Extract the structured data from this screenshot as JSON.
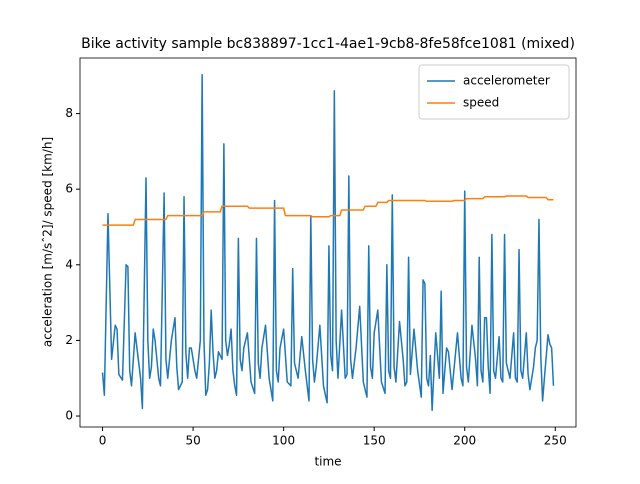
{
  "chart_data": {
    "type": "line",
    "title": "Bike activity sample bc838897-1cc1-4ae1-9cb8-8fe58fce1081 (mixed)",
    "x_label": "time",
    "y_label": "acceleration [m/sˆ2]/ speed [km/h]",
    "xlim": [
      -12.45,
      261.45
    ],
    "xticks": [
      0,
      50,
      100,
      150,
      200,
      250
    ],
    "ylim": [
      -0.29,
      9.47
    ],
    "yticks": [
      0,
      2,
      4,
      6,
      8
    ],
    "legend": "upper right",
    "series": [
      {
        "name": "accelerometer",
        "color": "#1f77b4",
        "x": [
          0,
          1,
          3,
          5,
          7,
          8,
          9,
          11,
          13,
          14,
          15,
          16,
          18,
          19,
          21,
          22,
          24,
          25,
          26,
          27,
          28,
          29,
          31,
          32,
          34,
          35,
          36,
          38,
          40,
          41,
          42,
          44,
          45,
          46,
          47,
          48,
          49,
          51,
          52,
          54,
          55,
          56,
          57,
          58,
          59,
          60,
          61,
          62,
          63,
          64,
          66,
          67,
          68,
          69,
          70,
          71,
          72,
          73,
          74,
          75,
          76,
          77,
          78,
          80,
          82,
          84,
          85,
          86,
          87,
          88,
          90,
          92,
          94,
          95,
          96,
          97,
          98,
          100,
          102,
          104,
          105,
          106,
          108,
          110,
          112,
          114,
          115,
          116,
          117,
          118,
          120,
          122,
          124,
          125,
          126,
          127,
          128,
          129,
          130,
          132,
          134,
          135,
          136,
          137,
          138,
          140,
          142,
          144,
          146,
          147,
          148,
          149,
          150,
          152,
          154,
          156,
          157,
          158,
          159,
          160,
          161,
          162,
          164,
          166,
          167,
          168,
          169,
          170,
          172,
          174,
          176,
          177,
          178,
          179,
          180,
          181,
          182,
          183,
          184,
          186,
          187,
          188,
          190,
          191,
          192,
          193,
          194,
          196,
          198,
          199,
          200,
          201,
          202,
          204,
          206,
          207,
          208,
          209,
          210,
          211,
          212,
          213,
          214,
          215,
          216,
          217,
          219,
          220,
          221,
          222,
          223,
          224,
          225,
          227,
          228,
          229,
          230,
          231,
          232,
          234,
          235,
          236,
          238,
          239,
          240,
          241,
          242,
          243,
          244,
          246,
          247,
          248,
          249
        ],
        "values": [
          1.15,
          0.55,
          5.35,
          1.5,
          2.4,
          2.3,
          1.1,
          0.95,
          4.0,
          3.95,
          1.2,
          0.8,
          2.2,
          1.8,
          1.0,
          0.2,
          6.3,
          2.0,
          1.0,
          1.3,
          2.3,
          2.0,
          1.0,
          0.8,
          5.9,
          1.5,
          1.0,
          2.0,
          2.6,
          1.3,
          0.7,
          0.9,
          5.8,
          1.7,
          1.0,
          1.8,
          1.8,
          1.2,
          1.0,
          2.0,
          9.03,
          2.0,
          0.55,
          0.7,
          1.4,
          2.8,
          1.7,
          1.0,
          1.2,
          1.7,
          1.5,
          7.2,
          2.0,
          1.6,
          1.9,
          2.3,
          1.2,
          0.8,
          0.55,
          4.7,
          1.5,
          1.2,
          1.8,
          2.2,
          0.9,
          0.6,
          4.7,
          1.4,
          1.0,
          1.8,
          2.4,
          1.0,
          0.4,
          5.7,
          1.2,
          0.9,
          1.8,
          2.3,
          0.9,
          0.8,
          3.9,
          1.4,
          1.0,
          2.1,
          1.2,
          0.4,
          5.3,
          1.5,
          0.9,
          1.3,
          2.4,
          0.8,
          0.35,
          4.5,
          1.6,
          1.2,
          8.6,
          2.0,
          1.0,
          2.8,
          1.0,
          1.1,
          6.35,
          1.5,
          1.0,
          1.8,
          2.9,
          0.9,
          0.5,
          4.5,
          1.3,
          1.0,
          2.2,
          2.8,
          0.9,
          0.6,
          4.0,
          1.2,
          1.0,
          5.85,
          1.3,
          0.9,
          2.5,
          1.5,
          0.8,
          0.9,
          4.2,
          1.1,
          2.3,
          1.2,
          0.5,
          3.6,
          3.5,
          1.0,
          0.8,
          1.6,
          0.15,
          1.2,
          2.2,
          1.0,
          3.3,
          0.6,
          1.8,
          1.7,
          1.2,
          0.7,
          1.2,
          2.2,
          1.0,
          0.8,
          5.95,
          1.3,
          0.9,
          2.4,
          1.5,
          0.8,
          4.2,
          1.2,
          0.9,
          2.6,
          2.6,
          1.3,
          0.6,
          4.8,
          1.2,
          1.0,
          2.1,
          1.0,
          0.9,
          4.8,
          1.4,
          1.2,
          1.0,
          2.2,
          1.0,
          0.9,
          4.4,
          1.2,
          1.0,
          2.2,
          1.1,
          0.7,
          1.3,
          1.8,
          2.0,
          5.2,
          1.6,
          0.4,
          1.0,
          2.15,
          1.9,
          1.8,
          0.8
        ]
      },
      {
        "name": "speed",
        "color": "#ff7f0e",
        "x": [
          0,
          17,
          18,
          35,
          36,
          55,
          56,
          65,
          66,
          80,
          81,
          100,
          101,
          115,
          116,
          125,
          126,
          131,
          132,
          144,
          145,
          151,
          152,
          157,
          158,
          178,
          179,
          193,
          194,
          200,
          201,
          210,
          211,
          222,
          223,
          234,
          235,
          245,
          246,
          249
        ],
        "values": [
          5.05,
          5.05,
          5.2,
          5.2,
          5.3,
          5.3,
          5.4,
          5.4,
          5.55,
          5.55,
          5.5,
          5.5,
          5.3,
          5.3,
          5.27,
          5.27,
          5.3,
          5.3,
          5.45,
          5.45,
          5.55,
          5.55,
          5.65,
          5.65,
          5.7,
          5.7,
          5.68,
          5.68,
          5.7,
          5.7,
          5.75,
          5.75,
          5.8,
          5.8,
          5.82,
          5.82,
          5.78,
          5.78,
          5.72,
          5.72
        ]
      }
    ]
  }
}
